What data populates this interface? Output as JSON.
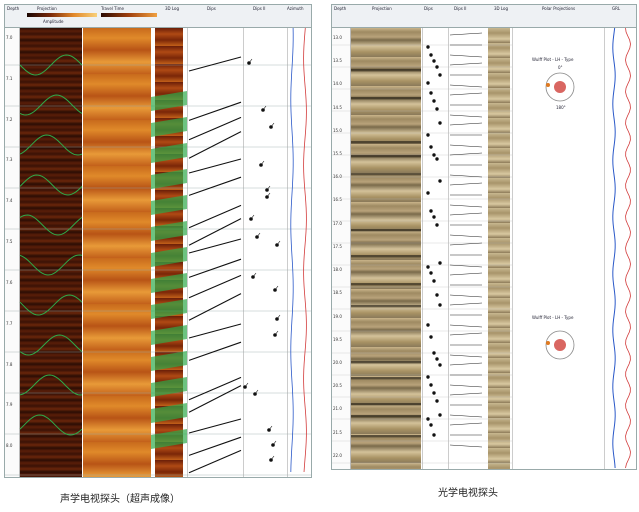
{
  "left_log": {
    "headers": [
      "Depth",
      "Projection",
      "Travel Time",
      "3D Log",
      "Dips",
      "Dips II",
      "Azimuth"
    ],
    "amplitude_label": "Amplitude",
    "depth_marks": [
      "7.0",
      "7.1",
      "7.2",
      "7.3",
      "7.4",
      "7.5",
      "7.6",
      "7.7",
      "7.8",
      "7.9",
      "8.0"
    ],
    "caption": "声学电视探头（超声成像）"
  },
  "right_log": {
    "headers": [
      "Depth",
      "Projection",
      "Dips",
      "Dips II",
      "3D Log",
      "Polar Projections",
      "GRL"
    ],
    "stereonet_labels": [
      "Wulff Plot - LH - Type",
      "Wulff Plot - LH - Type"
    ],
    "stereonet_ticks": [
      "0°",
      "180°"
    ],
    "depth_marks": [
      "13.0",
      "13.5",
      "14.0",
      "14.5",
      "15.0",
      "15.5",
      "16.0",
      "16.5",
      "17.0",
      "17.5",
      "18.0",
      "18.5",
      "19.0",
      "19.5",
      "20.0",
      "20.5",
      "21.0",
      "21.5",
      "22.0"
    ],
    "caption": "光学电视探头"
  },
  "colors": {
    "acoustic_dark": "#3a1406",
    "acoustic_bright": "#e08a2a",
    "optical_tan": "#b8a27a",
    "fracture_green": "#2faa4a",
    "trace_blue": "#2a58c8",
    "trace_red": "#d23a3a"
  }
}
